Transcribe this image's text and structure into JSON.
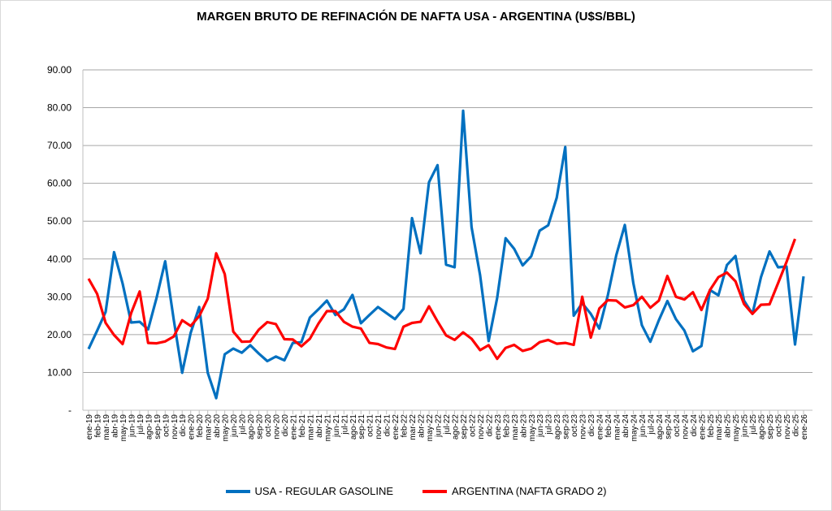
{
  "chart_data": {
    "type": "line",
    "title": "MARGEN BRUTO DE REFINACIÓN DE NAFTA USA - ARGENTINA (U$S/BBL)",
    "xlabel": "",
    "ylabel": "",
    "ylim": [
      0,
      90
    ],
    "yticks": [
      0,
      10,
      20,
      30,
      40,
      50,
      60,
      70,
      80,
      90
    ],
    "ytick_labels": [
      "-",
      "10.00",
      "20.00",
      "30.00",
      "40.00",
      "50.00",
      "60.00",
      "70.00",
      "80.00",
      "90.00"
    ],
    "grid": true,
    "legend_position": "bottom",
    "x": [
      "ene-19",
      "feb-19",
      "mar-19",
      "abr-19",
      "may-19",
      "jun-19",
      "jul-19",
      "ago-19",
      "sep-19",
      "oct-19",
      "nov-19",
      "dic-19",
      "ene-20",
      "feb-20",
      "mar-20",
      "abr-20",
      "may-20",
      "jun-20",
      "jul-20",
      "ago-20",
      "sep-20",
      "oct-20",
      "nov-20",
      "dic-20",
      "ene-21",
      "feb-21",
      "mar-21",
      "abr-21",
      "may-21",
      "jun-21",
      "jul-21",
      "ago-21",
      "sep-21",
      "oct-21",
      "nov-21",
      "dic-21",
      "ene-22",
      "feb-22",
      "mar-22",
      "abr-22",
      "may-22",
      "jun-22",
      "jul-22",
      "ago-22",
      "sep-22",
      "oct-22",
      "nov-22",
      "dic-22",
      "ene-23",
      "feb-23",
      "mar-23",
      "abr-23",
      "may-23",
      "jun-23",
      "jul-23",
      "ago-23",
      "sep-23",
      "oct-23",
      "nov-23",
      "dic-23",
      "ene-24",
      "feb-24",
      "mar-24",
      "abr-24",
      "may-24",
      "jun-24",
      "jul-24",
      "ago-24",
      "sep-24",
      "oct-24",
      "nov-24",
      "dic-24",
      "ene-25",
      "feb-25",
      "mar-25",
      "abr-25",
      "may-25",
      "jun-25",
      "jul-25",
      "ago-25",
      "sep-25",
      "oct-25",
      "nov-25",
      "dic-25",
      "ene-26"
    ],
    "series": [
      {
        "name": "USA - REGULAR GASOLINE",
        "color": "#0070C0",
        "values": [
          16.2,
          21,
          26,
          41.8,
          33.5,
          23.2,
          23.4,
          21.4,
          29.8,
          39.4,
          24,
          9.9,
          20.5,
          27.3,
          9.9,
          3.2,
          14.8,
          16.3,
          15.2,
          17.2,
          15,
          13,
          14.2,
          13.2,
          17.8,
          18,
          24.5,
          26.7,
          29,
          25.2,
          26.7,
          30.5,
          23,
          25.2,
          27.3,
          25.7,
          24.1,
          26.8,
          50.8,
          41.5,
          60.3,
          64.8,
          38.5,
          37.8,
          79.2,
          48.4,
          35.7,
          18.3,
          29.7,
          45.5,
          42.7,
          38.3,
          40.7,
          47.5,
          48.9,
          56.2,
          69.6,
          25,
          28.3,
          25.5,
          21.6,
          30.3,
          41,
          49,
          33.6,
          22.5,
          18.1,
          23.8,
          28.9,
          24.1,
          21.1,
          15.6,
          17,
          31.8,
          30.4,
          38.4,
          40.8,
          29,
          25.5,
          35.2,
          42,
          37.8,
          38,
          17.4,
          35.4
        ]
      },
      {
        "name": "ARGENTINA (NAFTA GRADO 2)",
        "color": "#FF0000",
        "values": [
          34.8,
          30.8,
          23.1,
          19.9,
          17.5,
          25.7,
          31.4,
          17.8,
          17.7,
          18.2,
          19.5,
          23.8,
          22.3,
          24.9,
          29.5,
          41.5,
          36,
          20.8,
          18.1,
          18.2,
          21.3,
          23.3,
          22.8,
          18.8,
          18.7,
          16.9,
          18.9,
          22.9,
          26.2,
          26.2,
          23.4,
          22.1,
          21.6,
          17.8,
          17.5,
          16.6,
          16.2,
          22.1,
          23.1,
          23.4,
          27.5,
          23.5,
          19.8,
          18.6,
          20.6,
          18.9,
          15.9,
          17.2,
          13.6,
          16.5,
          17.3,
          15.7,
          16.3,
          18,
          18.6,
          17.6,
          17.8,
          17.3,
          30,
          19.2,
          26.9,
          29.1,
          29,
          27.2,
          27.8,
          30,
          27.1,
          29,
          35.5,
          30,
          29.3,
          31.2,
          26.5,
          31.8,
          35.2,
          36.4,
          34.1,
          28.1,
          25.5,
          27.9,
          28,
          33.6,
          39.2,
          45.3,
          null
        ]
      }
    ]
  }
}
